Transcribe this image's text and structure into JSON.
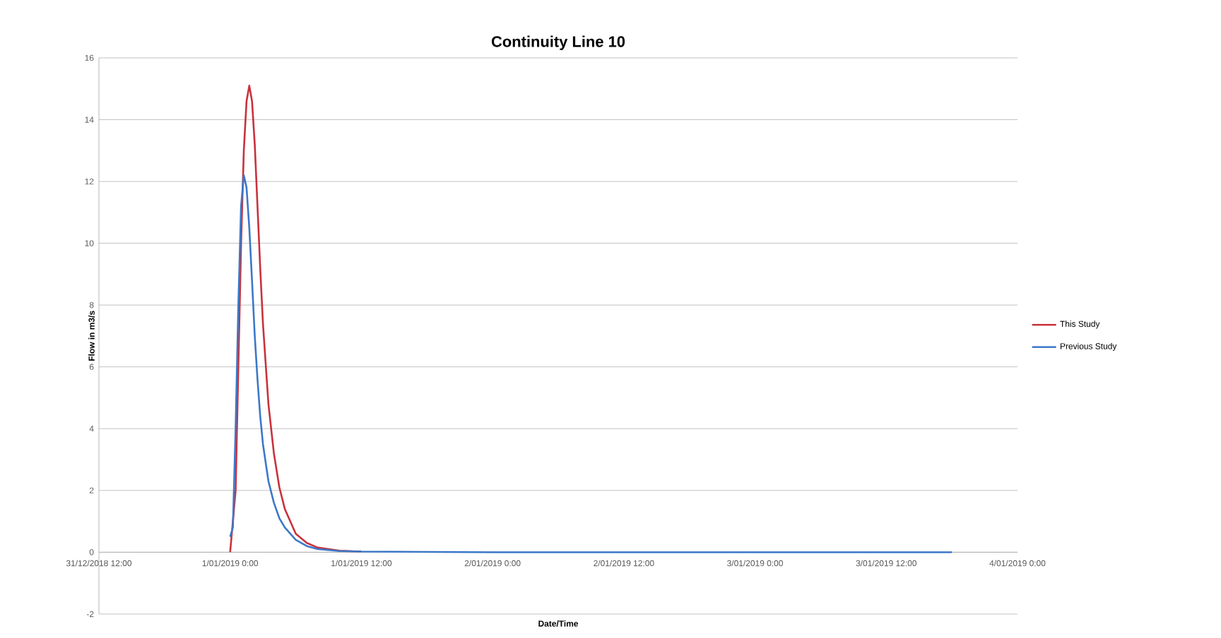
{
  "chart_data": {
    "type": "line",
    "title": "Continuity Line 10",
    "xlabel": "Date/Time",
    "ylabel": "Flow in m3/s",
    "xlim": [
      "2018-12-31T12:00",
      "2019-01-04T00:00"
    ],
    "xticks": [
      {
        "value": "2018-12-31T12:00",
        "label": "31/12/2018 12:00"
      },
      {
        "value": "2019-01-01T00:00",
        "label": "1/01/2019 0:00"
      },
      {
        "value": "2019-01-01T12:00",
        "label": "1/01/2019 12:00"
      },
      {
        "value": "2019-01-02T00:00",
        "label": "2/01/2019 0:00"
      },
      {
        "value": "2019-01-02T12:00",
        "label": "2/01/2019 12:00"
      },
      {
        "value": "2019-01-03T00:00",
        "label": "3/01/2019 0:00"
      },
      {
        "value": "2019-01-03T12:00",
        "label": "3/01/2019 12:00"
      },
      {
        "value": "2019-01-04T00:00",
        "label": "4/01/2019 0:00"
      }
    ],
    "ylim": [
      -2,
      16
    ],
    "yticks": [
      -2,
      0,
      2,
      4,
      6,
      8,
      10,
      12,
      14,
      16
    ],
    "grid": "y",
    "legend": "right",
    "marker": "none",
    "line_style": "solid",
    "series": [
      {
        "name": "This Study",
        "color": "#c8323c",
        "x": [
          "2019-01-01T00:00",
          "2019-01-01T00:30",
          "2019-01-01T00:45",
          "2019-01-01T01:00",
          "2019-01-01T01:15",
          "2019-01-01T01:30",
          "2019-01-01T01:45",
          "2019-01-01T02:00",
          "2019-01-01T02:15",
          "2019-01-01T02:30",
          "2019-01-01T02:45",
          "2019-01-01T03:00",
          "2019-01-01T03:30",
          "2019-01-01T04:00",
          "2019-01-01T04:30",
          "2019-01-01T05:00",
          "2019-01-01T06:00",
          "2019-01-01T07:00",
          "2019-01-01T08:00",
          "2019-01-01T10:00",
          "2019-01-01T12:00"
        ],
        "values": [
          0,
          2,
          6,
          10,
          13,
          14.6,
          15.1,
          14.6,
          13.2,
          11.2,
          9.2,
          7.4,
          4.8,
          3.2,
          2.1,
          1.4,
          0.6,
          0.3,
          0.15,
          0.05,
          0.02
        ]
      },
      {
        "name": "Previous Study",
        "color": "#3c78c8",
        "x": [
          "2019-01-01T00:00",
          "2019-01-01T00:15",
          "2019-01-01T00:30",
          "2019-01-01T00:45",
          "2019-01-01T01:00",
          "2019-01-01T01:15",
          "2019-01-01T01:30",
          "2019-01-01T01:45",
          "2019-01-01T02:00",
          "2019-01-01T02:15",
          "2019-01-01T02:30",
          "2019-01-01T02:45",
          "2019-01-01T03:00",
          "2019-01-01T03:30",
          "2019-01-01T04:00",
          "2019-01-01T04:30",
          "2019-01-01T05:00",
          "2019-01-01T06:00",
          "2019-01-01T07:00",
          "2019-01-01T08:00",
          "2019-01-01T10:00",
          "2019-01-01T12:00",
          "2019-01-02T00:00",
          "2019-01-02T12:00",
          "2019-01-03T00:00",
          "2019-01-03T18:00"
        ],
        "values": [
          0.5,
          0.8,
          4,
          8,
          11.2,
          12.2,
          11.8,
          10.5,
          8.8,
          7,
          5.6,
          4.4,
          3.5,
          2.3,
          1.6,
          1.1,
          0.8,
          0.4,
          0.2,
          0.1,
          0.04,
          0.02,
          0,
          0,
          0,
          0
        ]
      }
    ]
  }
}
